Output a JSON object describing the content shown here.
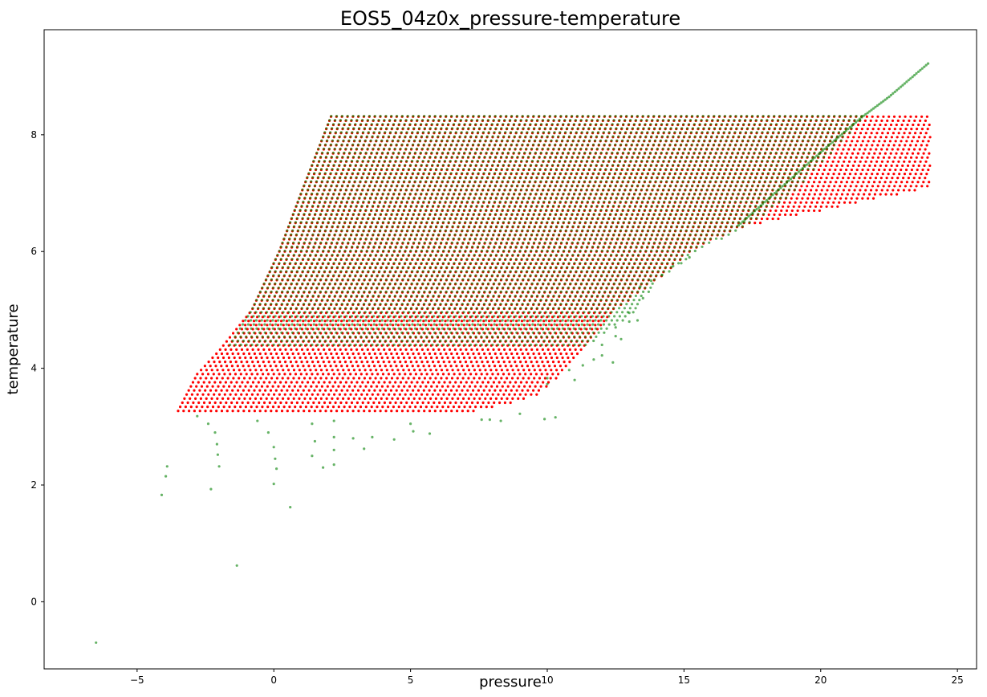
{
  "chart_data": {
    "type": "scatter",
    "title": "EOS5_04z0x_pressure-temperature",
    "xlabel": "pressure",
    "ylabel": "temperature",
    "xlim": [
      -8.4,
      25.7
    ],
    "ylim": [
      -1.15,
      9.8
    ],
    "xticks": [
      -5,
      0,
      5,
      10,
      15,
      20,
      25
    ],
    "xtick_labels": [
      "−5",
      "0",
      "5",
      "10",
      "15",
      "20",
      "25"
    ],
    "yticks": [
      0,
      2,
      4,
      6,
      8
    ],
    "ytick_labels": [
      "0",
      "2",
      "4",
      "6",
      "8"
    ],
    "grid": false,
    "series": [
      {
        "color": "#ff0000",
        "opacity": 1.0,
        "region": {
          "t_min": 3.27,
          "t_max": 8.32,
          "left_boundary": [
            [
              3.27,
              -3.5
            ],
            [
              3.9,
              -2.8
            ],
            [
              4.3,
              -2.0
            ],
            [
              5.0,
              -0.8
            ],
            [
              6.0,
              0.2
            ],
            [
              7.0,
              1.0
            ],
            [
              8.32,
              2.1
            ]
          ],
          "right_boundary": [
            [
              3.27,
              7.5
            ],
            [
              3.5,
              9.5
            ],
            [
              3.9,
              10.5
            ],
            [
              4.3,
              11.2
            ],
            [
              5.0,
              12.5
            ],
            [
              5.5,
              14.0
            ],
            [
              6.0,
              15.2
            ],
            [
              6.4,
              17.0
            ],
            [
              7.1,
              24.0
            ],
            [
              8.32,
              24.0
            ]
          ]
        }
      },
      {
        "color": "#008000",
        "opacity": 0.6,
        "region": {
          "t_min": 4.4,
          "t_max": 8.32,
          "left_boundary": [
            [
              4.4,
              -1.6
            ],
            [
              5.0,
              -0.8
            ],
            [
              6.0,
              0.2
            ],
            [
              7.0,
              1.0
            ],
            [
              8.32,
              2.1
            ]
          ],
          "right_boundary": [
            [
              4.4,
              11.5
            ],
            [
              5.0,
              13.3
            ],
            [
              5.5,
              14.0
            ],
            [
              6.0,
              15.5
            ],
            [
              6.5,
              17.5
            ],
            [
              7.0,
              19.0
            ],
            [
              7.5,
              20.0
            ],
            [
              8.0,
              21.0
            ],
            [
              8.32,
              21.6
            ]
          ]
        },
        "diagonal": [
          [
            17.0,
            6.45
          ],
          [
            20.0,
            7.7
          ],
          [
            21.5,
            8.3
          ],
          [
            22.5,
            8.65
          ],
          [
            24.0,
            9.25
          ]
        ],
        "outliers": [
          [
            -6.5,
            -0.7
          ],
          [
            -4.1,
            1.83
          ],
          [
            -3.95,
            2.15
          ],
          [
            -3.9,
            2.32
          ],
          [
            -2.3,
            1.93
          ],
          [
            -1.35,
            0.62
          ],
          [
            0.0,
            2.02
          ],
          [
            0.1,
            2.28
          ],
          [
            0.6,
            1.62
          ],
          [
            -2.0,
            2.32
          ],
          [
            -2.05,
            2.52
          ],
          [
            -2.08,
            2.7
          ],
          [
            -2.15,
            2.9
          ],
          [
            -2.4,
            3.05
          ],
          [
            -2.8,
            3.18
          ],
          [
            0.05,
            2.45
          ],
          [
            0.0,
            2.65
          ],
          [
            -0.2,
            2.9
          ],
          [
            -0.6,
            3.1
          ],
          [
            1.4,
            2.5
          ],
          [
            1.5,
            2.75
          ],
          [
            1.4,
            3.05
          ],
          [
            1.8,
            2.3
          ],
          [
            2.2,
            2.35
          ],
          [
            2.2,
            2.6
          ],
          [
            2.2,
            2.82
          ],
          [
            2.2,
            3.1
          ],
          [
            2.9,
            2.8
          ],
          [
            3.3,
            2.62
          ],
          [
            3.6,
            2.82
          ],
          [
            4.4,
            2.78
          ],
          [
            5.0,
            3.05
          ],
          [
            5.1,
            2.92
          ],
          [
            5.7,
            2.88
          ],
          [
            7.6,
            3.12
          ],
          [
            7.9,
            3.12
          ],
          [
            8.3,
            3.1
          ],
          [
            9.0,
            3.22
          ],
          [
            9.9,
            3.13
          ],
          [
            10.3,
            3.16
          ],
          [
            10.0,
            3.83
          ],
          [
            10.0,
            3.73
          ],
          [
            10.8,
            3.97
          ],
          [
            11.0,
            3.8
          ],
          [
            11.3,
            4.05
          ],
          [
            11.7,
            4.15
          ],
          [
            12.0,
            4.22
          ],
          [
            12.4,
            4.1
          ],
          [
            12.0,
            4.4
          ],
          [
            12.5,
            4.55
          ],
          [
            12.7,
            4.5
          ],
          [
            12.5,
            4.7
          ],
          [
            13.0,
            4.8
          ],
          [
            13.0,
            4.95
          ],
          [
            13.3,
            4.82
          ],
          [
            13.5,
            5.2
          ],
          [
            13.4,
            5.4
          ],
          [
            13.8,
            5.5
          ],
          [
            14.2,
            5.6
          ],
          [
            14.6,
            5.75
          ],
          [
            14.9,
            5.8
          ],
          [
            15.2,
            5.9
          ]
        ]
      }
    ]
  }
}
